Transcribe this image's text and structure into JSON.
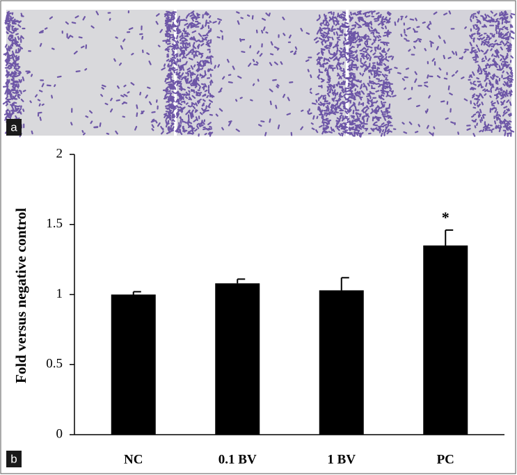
{
  "panels": [
    "a",
    "b"
  ],
  "chart_data": {
    "type": "bar",
    "y_label": "Fold versus negative control",
    "categories": [
      "NC",
      "0.1 BV",
      "1 BV",
      "PC"
    ],
    "values": [
      1.0,
      1.08,
      1.03,
      1.35
    ],
    "errors": [
      0.02,
      0.03,
      0.09,
      0.11
    ],
    "color": "#000000",
    "ylim": [
      0,
      2
    ],
    "yticks": [
      0,
      0.5,
      1,
      1.5,
      2
    ],
    "annotations": [
      {
        "text": "*",
        "category": "PC"
      }
    ]
  }
}
